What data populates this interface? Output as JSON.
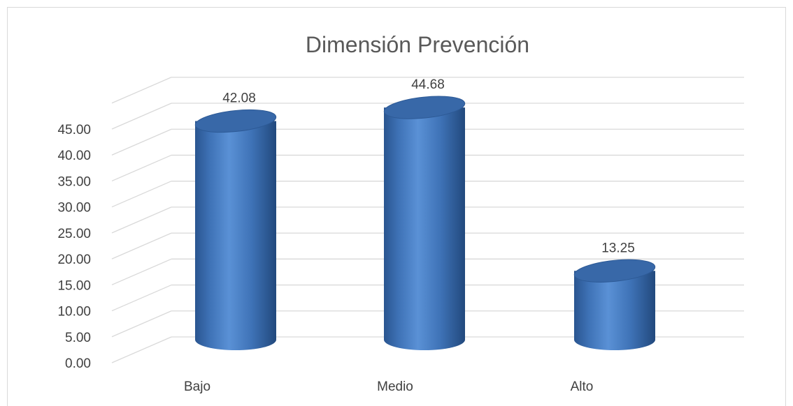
{
  "chart_data": {
    "type": "bar",
    "style": "3d-cylinder",
    "title": "Dimensión Prevención",
    "xlabel": "",
    "ylabel": "",
    "categories": [
      "Bajo",
      "Medio",
      "Alto"
    ],
    "values": [
      42.08,
      44.68,
      13.25
    ],
    "value_labels": [
      "42.08",
      "44.68",
      "13.25"
    ],
    "ylim": [
      0,
      45
    ],
    "yticks": [
      "0.00",
      "5.00",
      "10.00",
      "15.00",
      "20.00",
      "25.00",
      "30.00",
      "35.00",
      "40.00",
      "45.00"
    ],
    "grid": true,
    "legend": "none",
    "colors": {
      "bar": "#4a7ec2",
      "bar_dark": "#2a5590",
      "bar_top": "#3868a8",
      "grid": "#d9d9d9",
      "text": "#404040",
      "title": "#595959"
    }
  }
}
